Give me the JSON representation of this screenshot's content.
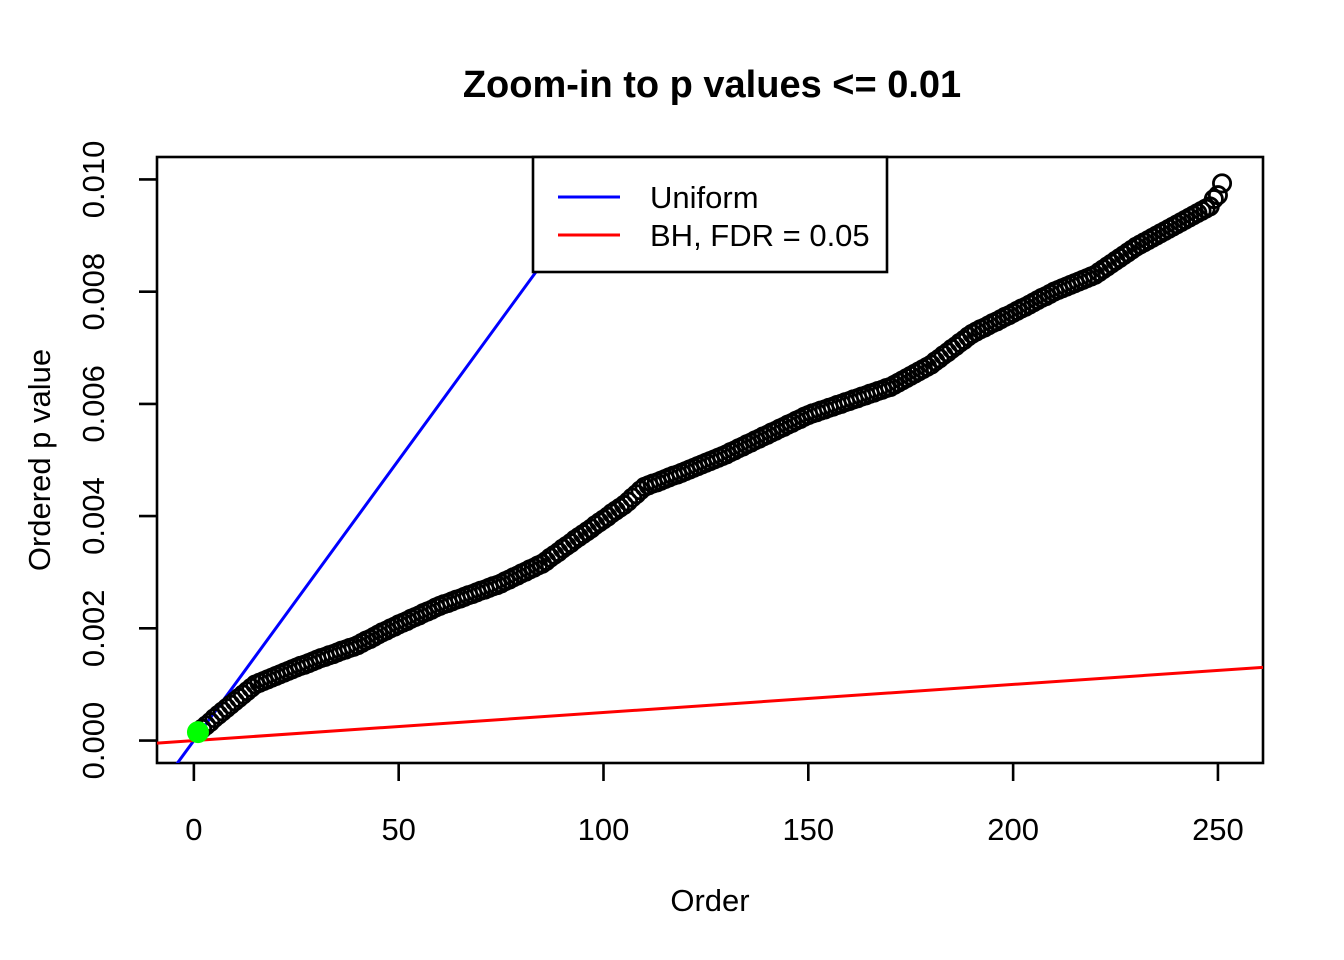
{
  "figure": {
    "title": "Zoom-in to p values <= 0.01",
    "x_axis": {
      "label": "Order",
      "tick_labels": [
        "0",
        "50",
        "100",
        "150",
        "200",
        "250"
      ],
      "tick_values": [
        0,
        50,
        100,
        150,
        200,
        250
      ]
    },
    "y_axis": {
      "label": "Ordered p value",
      "tick_labels": [
        "0.000",
        "0.002",
        "0.004",
        "0.006",
        "0.008",
        "0.010"
      ],
      "tick_values": [
        0,
        0.002,
        0.004,
        0.006,
        0.008,
        0.01
      ]
    },
    "legend": {
      "items": [
        {
          "id": "uniform",
          "label": "Uniform",
          "color": "#0000FF"
        },
        {
          "id": "bh",
          "label": "BH, FDR = 0.05",
          "color": "#FF0000"
        }
      ]
    }
  },
  "colors": {
    "background": "#FFFFFF",
    "points": "#000000",
    "highlight": "#00FF00",
    "uniform_line": "#0000FF",
    "bh_line": "#FF0000",
    "frame": "#000000"
  },
  "chart_data": {
    "type": "scatter",
    "title": "Zoom-in to p values <= 0.01",
    "xlabel": "Order",
    "ylabel": "Ordered p value",
    "xlim": [
      -9,
      261
    ],
    "ylim": [
      -0.0004,
      0.0104
    ],
    "x_ticks": [
      0,
      50,
      100,
      150,
      200,
      250
    ],
    "y_ticks": [
      0,
      0.002,
      0.004,
      0.006,
      0.008,
      0.01
    ],
    "grid": false,
    "legend_position": "top-inside",
    "lines": [
      {
        "id": "uniform-line",
        "name": "Uniform",
        "slope": 0.0001,
        "intercept": 0,
        "color": "#0000FF"
      },
      {
        "id": "bh-line",
        "name": "BH, FDR = 0.05",
        "slope": 5e-06,
        "intercept": 0,
        "color": "#FF0000"
      }
    ],
    "series": [
      {
        "name": "ordered_p_values",
        "marker": "open-circle",
        "color": "#000000",
        "x_first": 1,
        "x_step": 1,
        "y": [
          0.00015,
          0.00021,
          0.00027,
          0.00033,
          0.0004,
          0.00046,
          0.00052,
          0.00058,
          0.00064,
          0.0007,
          0.00076,
          0.00082,
          0.00088,
          0.00094,
          0.001,
          0.00103,
          0.00106,
          0.00109,
          0.00112,
          0.00115,
          0.00118,
          0.00121,
          0.00124,
          0.00127,
          0.0013,
          0.00133,
          0.00135,
          0.00138,
          0.00141,
          0.00144,
          0.00147,
          0.00149,
          0.00152,
          0.00154,
          0.00157,
          0.0016,
          0.00162,
          0.00165,
          0.00167,
          0.0017,
          0.00174,
          0.00178,
          0.00181,
          0.00185,
          0.00189,
          0.00193,
          0.00196,
          0.002,
          0.00203,
          0.00207,
          0.0021,
          0.00213,
          0.00217,
          0.0022,
          0.00223,
          0.00227,
          0.0023,
          0.00233,
          0.00237,
          0.0024,
          0.00243,
          0.00245,
          0.00248,
          0.00251,
          0.00253,
          0.00256,
          0.00259,
          0.00261,
          0.00264,
          0.00267,
          0.00269,
          0.00272,
          0.00275,
          0.00277,
          0.0028,
          0.00284,
          0.00287,
          0.00291,
          0.00294,
          0.00298,
          0.00301,
          0.00305,
          0.00308,
          0.00312,
          0.00315,
          0.0032,
          0.00326,
          0.00331,
          0.00336,
          0.00342,
          0.00347,
          0.00352,
          0.00358,
          0.00363,
          0.00368,
          0.00373,
          0.00378,
          0.00384,
          0.00389,
          0.00394,
          0.00399,
          0.00405,
          0.0041,
          0.00415,
          0.0042,
          0.00426,
          0.00433,
          0.00439,
          0.00446,
          0.00452,
          0.00455,
          0.00458,
          0.0046,
          0.00463,
          0.00466,
          0.00469,
          0.00472,
          0.00474,
          0.00477,
          0.0048,
          0.00483,
          0.00486,
          0.00489,
          0.00492,
          0.00495,
          0.00498,
          0.00501,
          0.00504,
          0.00507,
          0.0051,
          0.00514,
          0.00517,
          0.00521,
          0.00524,
          0.00528,
          0.00531,
          0.00535,
          0.00538,
          0.00542,
          0.00545,
          0.00549,
          0.00552,
          0.00556,
          0.00559,
          0.00563,
          0.00566,
          0.0057,
          0.00573,
          0.00577,
          0.0058,
          0.00583,
          0.00585,
          0.00588,
          0.0059,
          0.00593,
          0.00595,
          0.00598,
          0.006,
          0.00603,
          0.00605,
          0.00608,
          0.0061,
          0.00613,
          0.00615,
          0.00618,
          0.0062,
          0.00623,
          0.00625,
          0.00628,
          0.0063,
          0.00634,
          0.00638,
          0.00642,
          0.00646,
          0.0065,
          0.00654,
          0.00658,
          0.00662,
          0.00666,
          0.0067,
          0.00676,
          0.00681,
          0.00687,
          0.00692,
          0.00698,
          0.00703,
          0.00709,
          0.00714,
          0.0072,
          0.00725,
          0.00729,
          0.00733,
          0.00736,
          0.0074,
          0.00744,
          0.00747,
          0.00751,
          0.00755,
          0.00758,
          0.00762,
          0.00766,
          0.0077,
          0.00773,
          0.00777,
          0.00781,
          0.00785,
          0.00789,
          0.00792,
          0.00796,
          0.008,
          0.00803,
          0.00806,
          0.00809,
          0.00812,
          0.00815,
          0.00818,
          0.00821,
          0.00824,
          0.00827,
          0.0083,
          0.00835,
          0.0084,
          0.00845,
          0.0085,
          0.00855,
          0.0086,
          0.00865,
          0.0087,
          0.00875,
          0.0088,
          0.00884,
          0.00888,
          0.00892,
          0.00896,
          0.009,
          0.00904,
          0.00908,
          0.00912,
          0.00916,
          0.0092,
          0.00924,
          0.00928,
          0.00932,
          0.00936,
          0.0094,
          0.00944,
          0.00948,
          0.00952,
          0.00965,
          0.00972,
          0.00993
        ]
      },
      {
        "name": "highlighted_min_p",
        "marker": "filled-circle",
        "color": "#00FF00",
        "x": [
          1
        ],
        "y": [
          0.00015
        ]
      }
    ]
  }
}
